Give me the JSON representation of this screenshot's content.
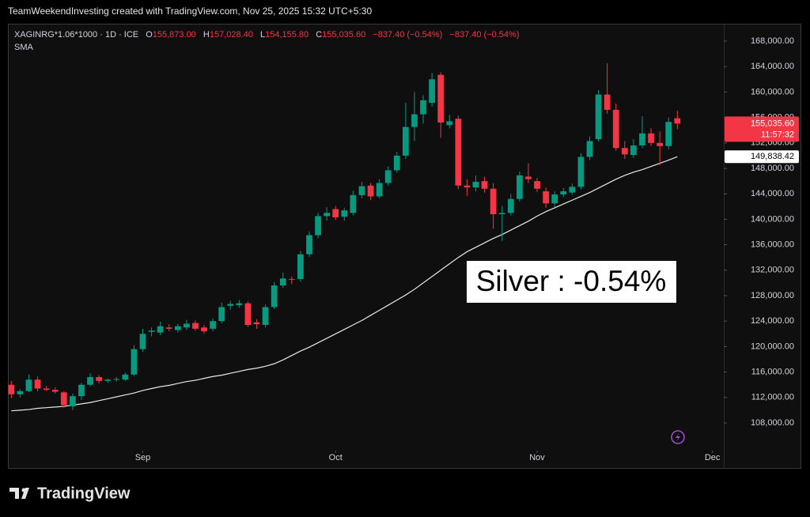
{
  "header": {
    "credit": "TeamWeekendInvesting created with TradingView.com, Nov 25, 2025 15:32 UTC+5:30"
  },
  "legend": {
    "symbol": "XAGINRG*1.06*1000 · 1D · ICE",
    "o_key": "O",
    "o": "155,873.00",
    "h_key": "H",
    "h": "157,028.40",
    "l_key": "L",
    "l": "154,155.80",
    "c_key": "C",
    "c": "155,035.60",
    "change": "−837.40 (−0.54%)",
    "change2": "−837.40 (−0.54%)"
  },
  "footer": {
    "logo": "TradingView"
  },
  "chart_data": {
    "type": "candlestick",
    "up_color": "#089981",
    "down_color": "#f23645",
    "grid": false,
    "annotation": "Silver : -0.54%",
    "last_price_label": "155,035.60",
    "countdown": "11:57:32",
    "sma_label": "149,838.42",
    "x": [
      0,
      1,
      2,
      3,
      4,
      5,
      6,
      7,
      8,
      9,
      10,
      11,
      12,
      13,
      14,
      15,
      16,
      17,
      18,
      19,
      20,
      21,
      22,
      23,
      24,
      25,
      26,
      27,
      28,
      29,
      30,
      31,
      32,
      33,
      34,
      35,
      36,
      37,
      38,
      39,
      40,
      41,
      42,
      43,
      44,
      45,
      46,
      47,
      48,
      49,
      50,
      51,
      52,
      53,
      54,
      55,
      56,
      57,
      58,
      59,
      60,
      61,
      62,
      63,
      64,
      65,
      66,
      67,
      68,
      69,
      70,
      71,
      72,
      73,
      74,
      75,
      76
    ],
    "open": [
      114000,
      112500,
      113000,
      114800,
      113400,
      113200,
      112800,
      110600,
      112200,
      114000,
      115200,
      114600,
      114800,
      114800,
      115600,
      119600,
      122300,
      122200,
      123000,
      122600,
      123000,
      123700,
      123000,
      122800,
      124000,
      126400,
      126500,
      126800,
      123800,
      123400,
      126200,
      129600,
      130600,
      130600,
      134500,
      137500,
      140500,
      141600,
      140400,
      141000,
      143800,
      145300,
      143600,
      145700,
      147700,
      150000,
      154500,
      156500,
      158300,
      162700,
      154800,
      155800,
      145300,
      145000,
      146000,
      144800,
      140800,
      141000,
      143200,
      146700,
      146000,
      144400,
      142500,
      143900,
      144200,
      145100,
      149800,
      152600,
      159600,
      157200,
      151200,
      150100,
      151600,
      153500,
      152000,
      151500,
      155873
    ],
    "high": [
      114600,
      113300,
      115600,
      115300,
      113800,
      113600,
      113000,
      112600,
      114300,
      115800,
      115500,
      115000,
      115200,
      115900,
      120200,
      122800,
      123000,
      123900,
      123500,
      123600,
      124200,
      124100,
      123400,
      124400,
      126900,
      127200,
      127300,
      127100,
      124300,
      126600,
      130100,
      131600,
      131000,
      135000,
      138100,
      141000,
      141900,
      142100,
      141800,
      144500,
      145900,
      145700,
      146300,
      148300,
      150600,
      158300,
      160000,
      159500,
      163000,
      163100,
      156400,
      156300,
      146300,
      146900,
      146700,
      145700,
      142100,
      144000,
      147500,
      148800,
      146500,
      145000,
      144400,
      144900,
      145600,
      150400,
      153000,
      160300,
      164500,
      158200,
      152300,
      152600,
      156200,
      154300,
      153800,
      156000,
      157028.4
    ],
    "low": [
      111900,
      112000,
      112800,
      113000,
      113000,
      112600,
      110400,
      110000,
      111600,
      113700,
      114200,
      114300,
      114500,
      114600,
      115300,
      119200,
      121600,
      121800,
      122400,
      122200,
      122600,
      122500,
      122000,
      122400,
      123700,
      125800,
      126100,
      123100,
      122800,
      123000,
      125900,
      129200,
      129800,
      130200,
      134100,
      137000,
      139800,
      139900,
      139800,
      140600,
      143300,
      143000,
      143300,
      145300,
      147300,
      149500,
      152300,
      155000,
      157700,
      152800,
      154300,
      144700,
      143700,
      144400,
      144200,
      138500,
      136600,
      140600,
      142800,
      145700,
      144300,
      141800,
      141900,
      143500,
      143900,
      144700,
      149300,
      152200,
      156600,
      150800,
      149500,
      149600,
      151200,
      151500,
      148500,
      151000,
      154155.8
    ],
    "close": [
      112500,
      113000,
      114800,
      113400,
      113200,
      112900,
      110800,
      112200,
      114000,
      115200,
      114600,
      114800,
      114900,
      115600,
      119600,
      122000,
      122500,
      123200,
      122800,
      123200,
      123600,
      122800,
      122400,
      124000,
      126200,
      126700,
      126800,
      123400,
      123500,
      126200,
      129600,
      130700,
      130500,
      134500,
      137500,
      140500,
      141000,
      140300,
      141400,
      143800,
      145200,
      143600,
      145700,
      147700,
      150000,
      154500,
      156500,
      158700,
      162000,
      155200,
      155400,
      145300,
      145000,
      145900,
      144800,
      140800,
      141000,
      143200,
      146900,
      146300,
      144800,
      142500,
      143900,
      144400,
      145100,
      149800,
      152300,
      159600,
      157200,
      151200,
      150200,
      151600,
      153500,
      152000,
      151500,
      155300,
      155035.6
    ],
    "sma": {
      "name": "SMA",
      "color": "#e8e8e8",
      "values": [
        109900,
        110000,
        110100,
        110300,
        110400,
        110500,
        110600,
        110800,
        111000,
        111200,
        111500,
        111800,
        112100,
        112400,
        112700,
        113100,
        113400,
        113700,
        113900,
        114200,
        114500,
        114700,
        115000,
        115300,
        115500,
        115800,
        116100,
        116400,
        116600,
        116900,
        117300,
        117900,
        118600,
        119300,
        119900,
        120600,
        121300,
        122000,
        122700,
        123400,
        124100,
        124900,
        125700,
        126500,
        127300,
        128100,
        129000,
        130000,
        131000,
        132000,
        133000,
        134000,
        134900,
        135600,
        136300,
        137000,
        137600,
        138300,
        139000,
        139700,
        140500,
        141200,
        141800,
        142400,
        143000,
        143600,
        144200,
        144900,
        145600,
        146300,
        146900,
        147400,
        147800,
        148300,
        148800,
        149300,
        149838.42
      ]
    },
    "xlim": [
      -0.3,
      81.3
    ],
    "xticks": [
      {
        "value": 15,
        "label": "Sep"
      },
      {
        "value": 37,
        "label": "Oct"
      },
      {
        "value": 60,
        "label": "Nov"
      },
      {
        "value": 80,
        "label": "Dec"
      }
    ],
    "ylim": [
      103900,
      170110
    ],
    "yticks": [
      {
        "value": 108000,
        "label": "108,000.00"
      },
      {
        "value": 112000,
        "label": "112,000.00"
      },
      {
        "value": 116000,
        "label": "116,000.00"
      },
      {
        "value": 120000,
        "label": "120,000.00"
      },
      {
        "value": 124000,
        "label": "124,000.00"
      },
      {
        "value": 128000,
        "label": "128,000.00"
      },
      {
        "value": 132000,
        "label": "132,000.00"
      },
      {
        "value": 136000,
        "label": "136,000.00"
      },
      {
        "value": 140000,
        "label": "140,000.00"
      },
      {
        "value": 144000,
        "label": "144,000.00"
      },
      {
        "value": 148000,
        "label": "148,000.00"
      },
      {
        "value": 152000,
        "label": "152,000.00"
      },
      {
        "value": 156000,
        "label": "156,000.00"
      },
      {
        "value": 160000,
        "label": "160,000.00"
      },
      {
        "value": 164000,
        "label": "164,000.00"
      },
      {
        "value": 168000,
        "label": "168,000.00"
      }
    ]
  }
}
